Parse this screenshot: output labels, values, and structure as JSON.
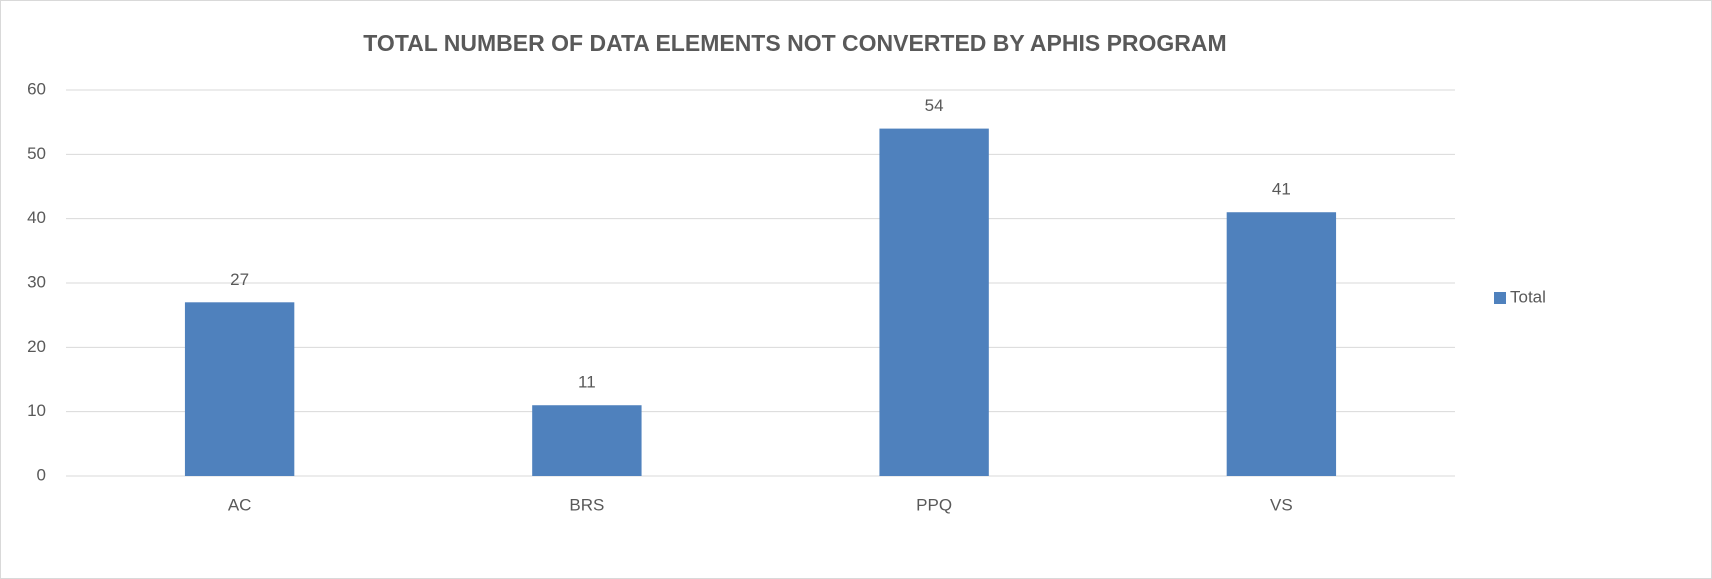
{
  "chart_data": {
    "type": "bar",
    "title": "TOTAL NUMBER OF DATA ELEMENTS NOT CONVERTED BY APHIS PROGRAM",
    "categories": [
      "AC",
      "BRS",
      "PPQ",
      "VS"
    ],
    "series": [
      {
        "name": "Total",
        "color": "#4f81bd",
        "values": [
          27,
          11,
          54,
          41
        ]
      }
    ],
    "ylim": [
      0,
      60
    ],
    "yticks": [
      0,
      10,
      20,
      30,
      40,
      50,
      60
    ],
    "grid": true,
    "legend": "right",
    "data_labels": true
  }
}
